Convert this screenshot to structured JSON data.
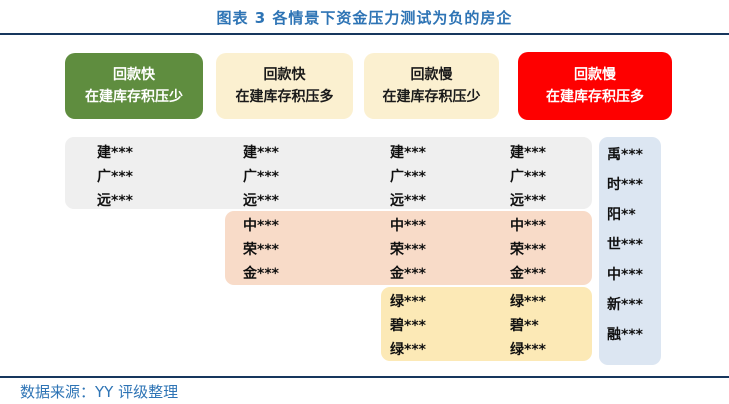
{
  "title": "图表 3 各情景下资金压力测试为负的房企",
  "source": "数据来源：YY 评级整理",
  "headers": [
    {
      "line1": "回款快",
      "line2": "在建库存积压少"
    },
    {
      "line1": "回款快",
      "line2": "在建库存积压多"
    },
    {
      "line1": "回款慢",
      "line2": "在建库存积压少"
    },
    {
      "line1": "回款慢",
      "line2": "在建库存积压多"
    }
  ],
  "bands": {
    "gray": {
      "names": [
        "建***",
        "广***",
        "远***"
      ],
      "spans_columns": [
        1,
        2,
        3,
        4
      ]
    },
    "pink": {
      "names": [
        "中***",
        "荣***",
        "金***"
      ],
      "spans_columns": [
        2,
        3,
        4
      ]
    },
    "yellow": {
      "col3": [
        "绿***",
        "碧***",
        "绿***"
      ],
      "col4": [
        "绿***",
        "碧**",
        "绿***"
      ],
      "spans_columns": [
        3,
        4
      ]
    },
    "blue": {
      "names": [
        "禹***",
        "时***",
        "阳**",
        "世***",
        "中***",
        "新***",
        "融***"
      ]
    }
  },
  "colors": {
    "title_blue": "#2e74b5",
    "rule_navy": "#17365d",
    "header_green": "#5f8d3f",
    "header_cream": "#fbf0d0",
    "header_red": "#fe0000",
    "band_gray": "#efefef",
    "band_pink": "#f8dbc8",
    "band_yellow": "#fce9b6",
    "band_blue": "#dce6f2"
  }
}
